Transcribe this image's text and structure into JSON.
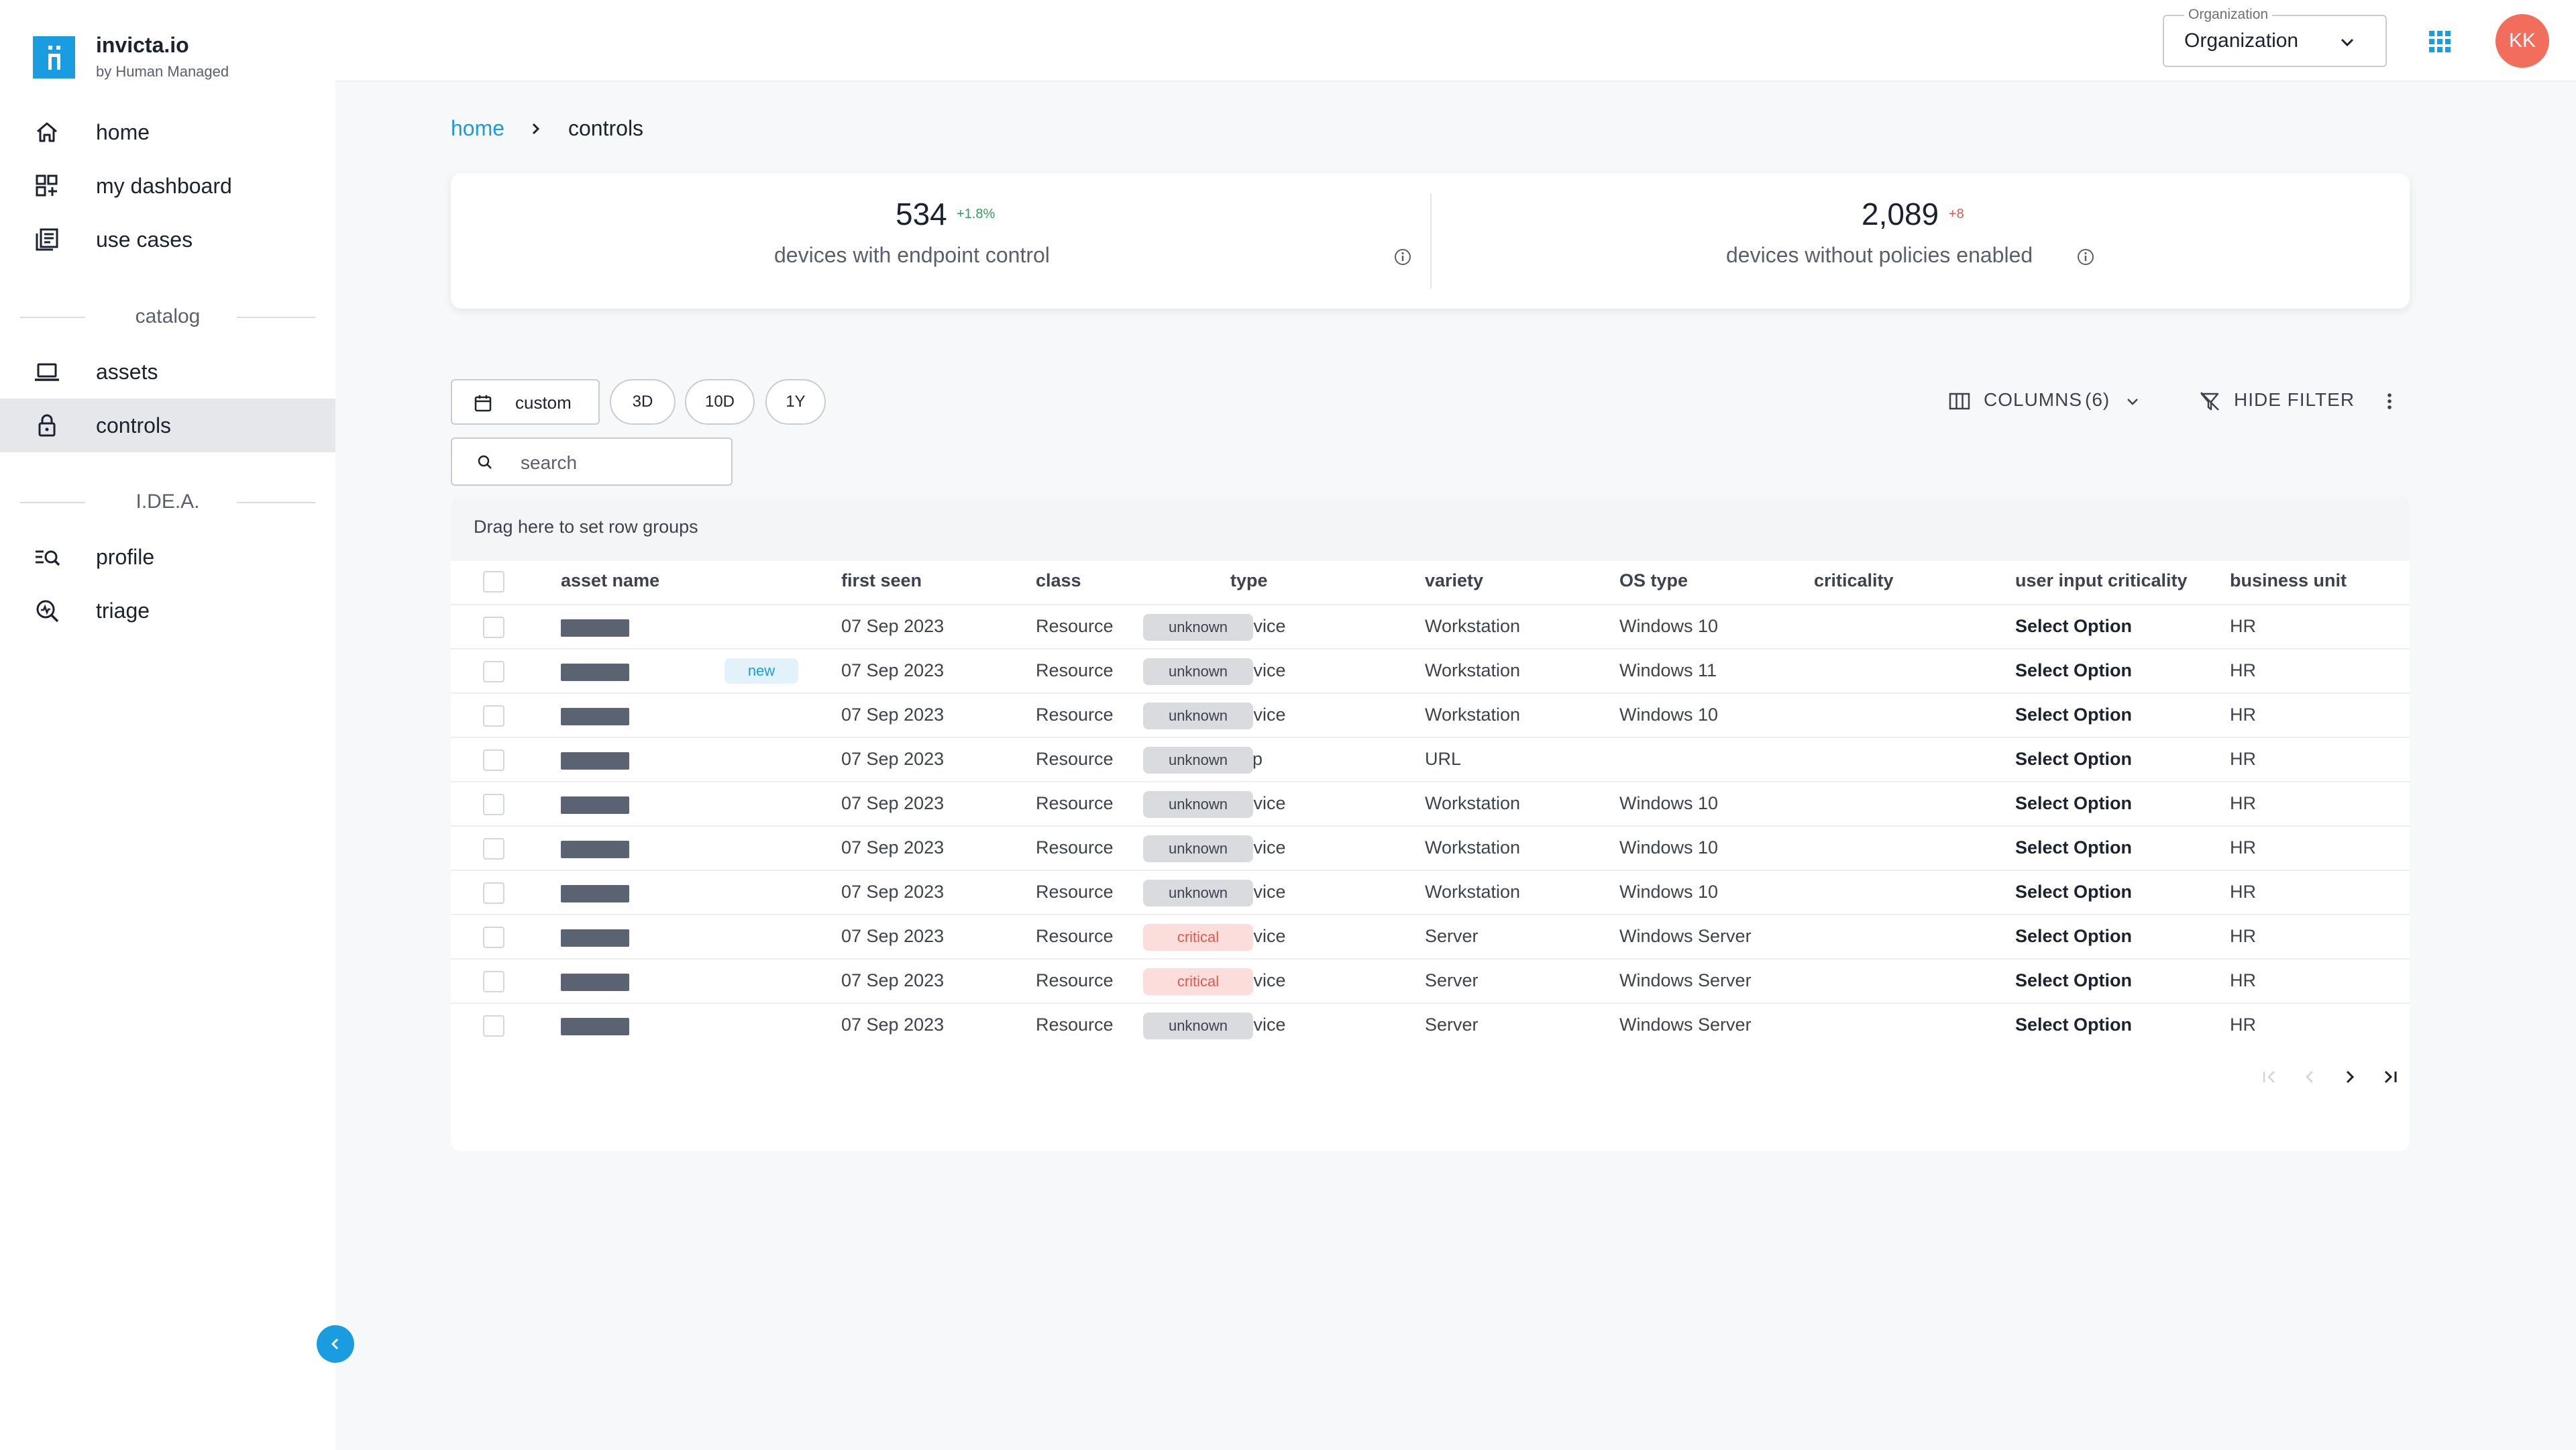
{
  "app": {
    "name": "invicta.io",
    "tagline": "by Human Managed"
  },
  "colors": {
    "accent": "#1a9de0",
    "avatar": "#f26d5b",
    "positive": "#2e9d5b",
    "negative": "#e2594c"
  },
  "sidebar": {
    "items": [
      {
        "label": "home",
        "icon": "home-icon"
      },
      {
        "label": "my dashboard",
        "icon": "dashboard-icon"
      },
      {
        "label": "use cases",
        "icon": "use-cases-icon"
      },
      {
        "label": "assets",
        "icon": "laptop-icon"
      },
      {
        "label": "controls",
        "icon": "lock-icon",
        "active": true
      },
      {
        "label": "profile",
        "icon": "profile-icon"
      },
      {
        "label": "triage",
        "icon": "triage-icon"
      }
    ],
    "sections": [
      "catalog",
      "I.DE.A."
    ]
  },
  "header": {
    "org_label": "Organization",
    "org_value": "Organization",
    "avatar": "KK"
  },
  "breadcrumb": {
    "home": "home",
    "current": "controls"
  },
  "stats": [
    {
      "value": "534",
      "delta": "+1.8%",
      "label": "devices with endpoint control"
    },
    {
      "value": "2,089",
      "delta": "+8",
      "label": "devices without policies enabled"
    }
  ],
  "toolbar": {
    "custom": "custom",
    "ranges": [
      "3D",
      "10D",
      "1Y"
    ],
    "search_placeholder": "search",
    "columns": "COLUMNS",
    "columns_count": "(6)",
    "hide_filter": "HIDE FILTER"
  },
  "table": {
    "group_hint": "Drag here to set row groups",
    "headers": [
      "asset name",
      "first seen",
      "class",
      "type",
      "variety",
      "OS type",
      "criticality",
      "user input criticality",
      "business unit"
    ],
    "rows": [
      {
        "new": "",
        "first_seen": "07 Sep 2023",
        "class": "Resource",
        "type": "Device",
        "variety": "Workstation",
        "os": "Windows 10",
        "criticality": "unknown",
        "uic": "Select Option",
        "bu": "HR"
      },
      {
        "new": "new",
        "first_seen": "07 Sep 2023",
        "class": "Resource",
        "type": "Device",
        "variety": "Workstation",
        "os": "Windows 11",
        "criticality": "unknown",
        "uic": "Select Option",
        "bu": "HR"
      },
      {
        "new": "",
        "first_seen": "07 Sep 2023",
        "class": "Resource",
        "type": "Device",
        "variety": "Workstation",
        "os": "Windows 10",
        "criticality": "unknown",
        "uic": "Select Option",
        "bu": "HR"
      },
      {
        "new": "",
        "first_seen": "07 Sep 2023",
        "class": "Resource",
        "type": "App",
        "variety": "URL",
        "os": "",
        "criticality": "unknown",
        "uic": "Select Option",
        "bu": "HR"
      },
      {
        "new": "",
        "first_seen": "07 Sep 2023",
        "class": "Resource",
        "type": "Device",
        "variety": "Workstation",
        "os": "Windows 10",
        "criticality": "unknown",
        "uic": "Select Option",
        "bu": "HR"
      },
      {
        "new": "",
        "first_seen": "07 Sep 2023",
        "class": "Resource",
        "type": "Device",
        "variety": "Workstation",
        "os": "Windows 10",
        "criticality": "unknown",
        "uic": "Select Option",
        "bu": "HR"
      },
      {
        "new": "",
        "first_seen": "07 Sep 2023",
        "class": "Resource",
        "type": "Device",
        "variety": "Workstation",
        "os": "Windows 10",
        "criticality": "unknown",
        "uic": "Select Option",
        "bu": "HR"
      },
      {
        "new": "",
        "first_seen": "07 Sep 2023",
        "class": "Resource",
        "type": "Device",
        "variety": "Server",
        "os": "Windows Server",
        "criticality": "critical",
        "uic": "Select Option",
        "bu": "HR"
      },
      {
        "new": "",
        "first_seen": "07 Sep 2023",
        "class": "Resource",
        "type": "Device",
        "variety": "Server",
        "os": "Windows Server",
        "criticality": "critical",
        "uic": "Select Option",
        "bu": "HR"
      },
      {
        "new": "",
        "first_seen": "07 Sep 2023",
        "class": "Resource",
        "type": "Device",
        "variety": "Server",
        "os": "Windows Server",
        "criticality": "unknown",
        "uic": "Select Option",
        "bu": "HR"
      }
    ]
  }
}
